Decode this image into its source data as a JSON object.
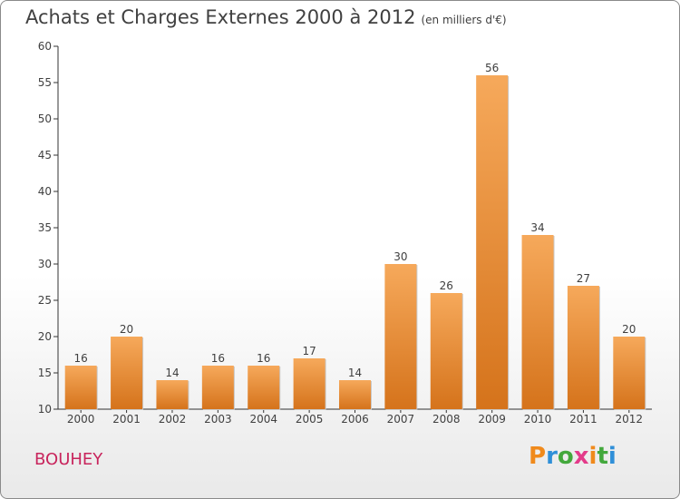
{
  "header": {
    "title": "Achats et Charges Externes 2000 à 2012",
    "subtitle": "(en milliers d'€)"
  },
  "footer": {
    "city": "BOUHEY",
    "logo": "Proxiti"
  },
  "colors": {
    "bar_top": "#f6a95b",
    "bar_bottom": "#d5731b",
    "city": "#c8245c"
  },
  "chart_data": {
    "type": "bar",
    "categories": [
      "2000",
      "2001",
      "2002",
      "2003",
      "2004",
      "2005",
      "2006",
      "2007",
      "2008",
      "2009",
      "2010",
      "2011",
      "2012"
    ],
    "values": [
      16,
      20,
      14,
      16,
      16,
      17,
      14,
      30,
      26,
      56,
      34,
      27,
      20
    ],
    "ylim": [
      10,
      60
    ],
    "yticks": [
      10,
      15,
      20,
      25,
      30,
      35,
      40,
      45,
      50,
      55,
      60
    ],
    "grid": false,
    "data_labels": true
  }
}
